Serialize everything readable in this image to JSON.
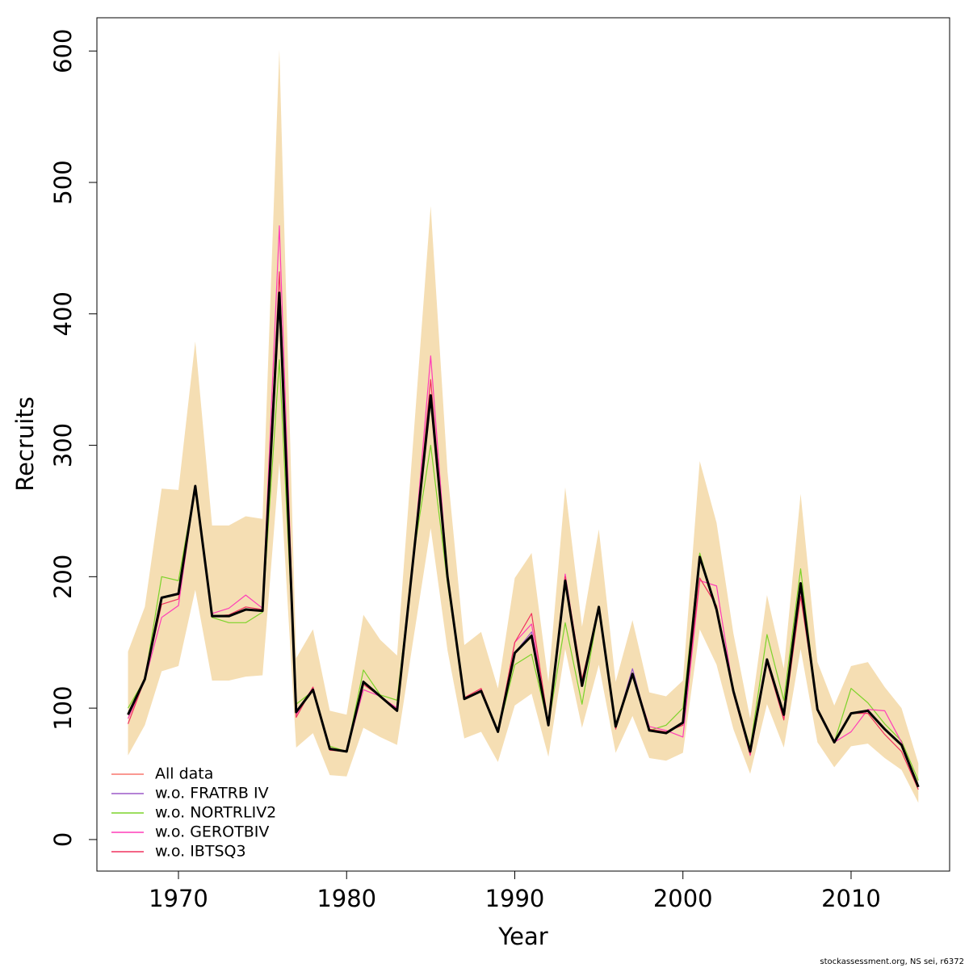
{
  "chart_data": {
    "type": "line",
    "xlabel": "Year",
    "ylabel": "Recruits",
    "credit": "stockassessment.org, NS sei, r6372",
    "x": [
      1967,
      1968,
      1969,
      1970,
      1971,
      1972,
      1973,
      1974,
      1975,
      1976,
      1977,
      1978,
      1979,
      1980,
      1981,
      1982,
      1983,
      1984,
      1985,
      1986,
      1987,
      1988,
      1989,
      1990,
      1991,
      1992,
      1993,
      1994,
      1995,
      1996,
      1997,
      1998,
      1999,
      2000,
      2001,
      2002,
      2003,
      2004,
      2005,
      2006,
      2007,
      2008,
      2009,
      2010,
      2011,
      2012,
      2013,
      2014
    ],
    "values": [
      95,
      122,
      184,
      187,
      269,
      170,
      170,
      175,
      174,
      416,
      97,
      114,
      69,
      67,
      120,
      109,
      98,
      218,
      338,
      200,
      107,
      113,
      82,
      142,
      155,
      87,
      197,
      117,
      177,
      86,
      126,
      83,
      81,
      89,
      215,
      175,
      113,
      67,
      137,
      95,
      195,
      99,
      74,
      96,
      98,
      84,
      72,
      40
    ],
    "color": "#000000",
    "upper": [
      143,
      177,
      267,
      266,
      379,
      239,
      239,
      246,
      244,
      601,
      138,
      160,
      98,
      95,
      171,
      152,
      140,
      310,
      482,
      280,
      148,
      158,
      115,
      199,
      218,
      120,
      268,
      162,
      236,
      120,
      167,
      112,
      109,
      121,
      288,
      241,
      157,
      92,
      186,
      130,
      263,
      135,
      102,
      132,
      135,
      116,
      100,
      58
    ],
    "lower": [
      64,
      87,
      128,
      132,
      190,
      121,
      121,
      124,
      125,
      287,
      70,
      81,
      49,
      48,
      85,
      78,
      72,
      155,
      237,
      144,
      77,
      82,
      59,
      102,
      111,
      63,
      145,
      85,
      133,
      66,
      94,
      62,
      60,
      66,
      160,
      133,
      84,
      50,
      103,
      70,
      145,
      74,
      55,
      71,
      73,
      62,
      53,
      28
    ],
    "band_color": "#f5deb3",
    "series": [
      {
        "name": "All data",
        "color": "#f8766d",
        "values": [
          95,
          122,
          184,
          187,
          269,
          170,
          170,
          175,
          174,
          416,
          97,
          114,
          69,
          67,
          120,
          109,
          98,
          218,
          338,
          200,
          107,
          113,
          82,
          142,
          155,
          87,
          197,
          117,
          177,
          86,
          126,
          83,
          81,
          89,
          215,
          175,
          113,
          67,
          137,
          95,
          195,
          99,
          74,
          96,
          98,
          84,
          72,
          40
        ]
      },
      {
        "name": "w.o. FRATRB IV",
        "color": "#9b59c8",
        "values": [
          95,
          122,
          184,
          187,
          269,
          170,
          170,
          175,
          174,
          416,
          97,
          114,
          69,
          67,
          120,
          109,
          98,
          218,
          338,
          200,
          107,
          113,
          82,
          142,
          158,
          87,
          197,
          117,
          177,
          86,
          130,
          83,
          81,
          89,
          217,
          175,
          113,
          67,
          137,
          95,
          195,
          99,
          74,
          96,
          98,
          84,
          72,
          40
        ]
      },
      {
        "name": "w.o. NORTRLIV2",
        "color": "#7cd32a",
        "values": [
          100,
          122,
          200,
          197,
          269,
          169,
          165,
          165,
          173,
          365,
          103,
          113,
          71,
          67,
          129,
          110,
          106,
          218,
          300,
          195,
          107,
          113,
          82,
          133,
          141,
          87,
          165,
          103,
          177,
          86,
          126,
          83,
          87,
          100,
          218,
          175,
          113,
          70,
          156,
          106,
          206,
          99,
          74,
          115,
          104,
          88,
          75,
          45
        ]
      },
      {
        "name": "w.o. GEROTBIV",
        "color": "#ff3db8",
        "values": [
          92,
          121,
          169,
          178,
          269,
          172,
          176,
          186,
          176,
          467,
          95,
          116,
          69,
          67,
          114,
          109,
          100,
          218,
          368,
          200,
          107,
          114,
          82,
          150,
          164,
          87,
          202,
          120,
          177,
          86,
          126,
          86,
          83,
          78,
          197,
          193,
          113,
          64,
          135,
          93,
          190,
          100,
          74,
          82,
          99,
          98,
          74,
          40
        ]
      },
      {
        "name": "w.o. IBTSQ3",
        "color": "#f0325f",
        "values": [
          88,
          122,
          179,
          183,
          269,
          170,
          171,
          177,
          175,
          432,
          93,
          116,
          68,
          67,
          118,
          109,
          99,
          218,
          350,
          200,
          108,
          115,
          82,
          150,
          172,
          88,
          200,
          122,
          175,
          84,
          126,
          84,
          82,
          87,
          199,
          178,
          111,
          65,
          135,
          91,
          185,
          100,
          75,
          96,
          96,
          80,
          67,
          38
        ]
      }
    ],
    "xlim": [
      1965.15,
      2015.86
    ],
    "ylim": [
      -24,
      625.3
    ],
    "xticks": [
      1970,
      1980,
      1990,
      2000,
      2010
    ],
    "yticks": [
      0,
      100,
      200,
      300,
      400,
      500,
      600
    ],
    "legend": "bottomleft"
  }
}
